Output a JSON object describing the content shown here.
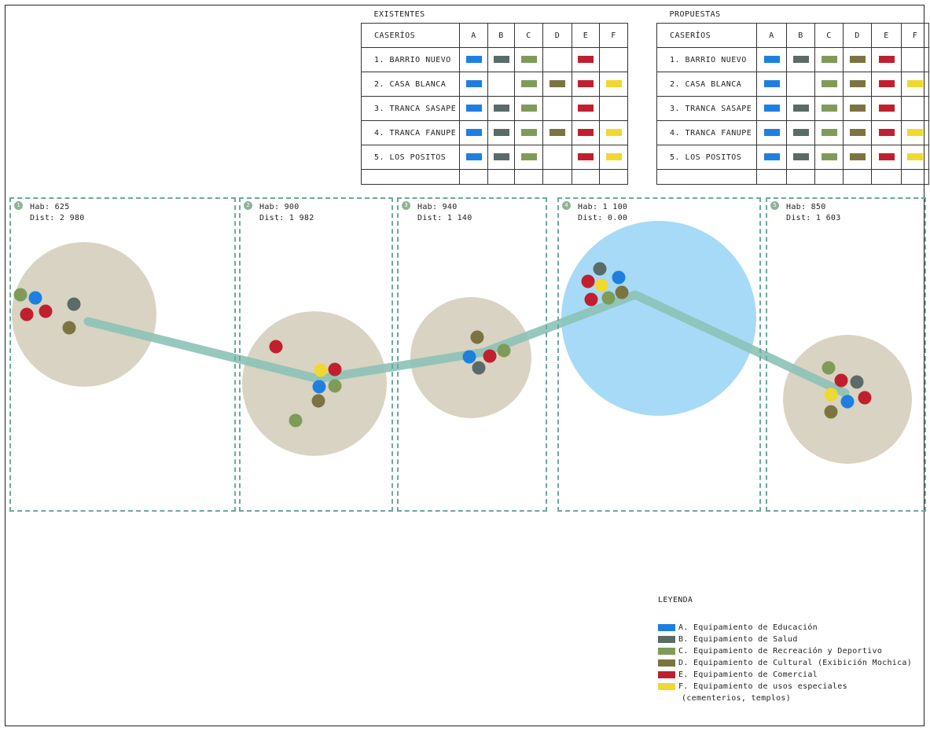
{
  "colors": {
    "A": "#1f7fe0",
    "B": "#5a6b68",
    "C": "#7e9c58",
    "D": "#7c7440",
    "E": "#c0202e",
    "F": "#f0d832",
    "zone_circle": "#d8d3c3",
    "hub_circle": "#a7daf6",
    "link": "#8cc2b6",
    "zone_border": "#6aa99e"
  },
  "tables": [
    {
      "title": "EXISTENTES",
      "headers": [
        "CASERÍOS",
        "A",
        "B",
        "C",
        "D",
        "E",
        "F"
      ],
      "rows": [
        {
          "name": "1. BARRIO NUEVO",
          "cells": [
            "A",
            "B",
            "C",
            "",
            "E",
            ""
          ]
        },
        {
          "name": "2. CASA BLANCA",
          "cells": [
            "A",
            "",
            "C",
            "D",
            "E",
            "F"
          ]
        },
        {
          "name": "3. TRANCA SASAPE",
          "cells": [
            "A",
            "B",
            "C",
            "",
            "E",
            ""
          ]
        },
        {
          "name": "4. TRANCA FANUPE",
          "cells": [
            "A",
            "B",
            "C",
            "D",
            "E",
            "F"
          ]
        },
        {
          "name": "5. LOS POSITOS",
          "cells": [
            "A",
            "B",
            "C",
            "",
            "E",
            "F"
          ]
        }
      ]
    },
    {
      "title": "PROPUESTAS",
      "headers": [
        "CASERÍOS",
        "A",
        "B",
        "C",
        "D",
        "E",
        "F"
      ],
      "rows": [
        {
          "name": "1. BARRIO NUEVO",
          "cells": [
            "A",
            "B",
            "C",
            "D",
            "E",
            ""
          ]
        },
        {
          "name": "2. CASA BLANCA",
          "cells": [
            "A",
            "",
            "C",
            "D",
            "E",
            "F"
          ]
        },
        {
          "name": "3. TRANCA SASAPE",
          "cells": [
            "A",
            "B",
            "C",
            "D",
            "E",
            ""
          ]
        },
        {
          "name": "4. TRANCA FANUPE",
          "cells": [
            "A",
            "B",
            "C",
            "D",
            "E",
            "F"
          ]
        },
        {
          "name": "5. LOS POSITOS",
          "cells": [
            "A",
            "B",
            "C",
            "D",
            "E",
            "F"
          ]
        }
      ]
    }
  ],
  "zones": [
    {
      "num": "1",
      "hab": "Hab: 625",
      "dist": "Dist: 2 980"
    },
    {
      "num": "2",
      "hab": "Hab: 900",
      "dist": "Dist: 1 982"
    },
    {
      "num": "3",
      "hab": "Hab: 940",
      "dist": "Dist: 1 140"
    },
    {
      "num": "4",
      "hab": "Hab: 1 100",
      "dist": "Dist: 0.00"
    },
    {
      "num": "5",
      "hab": "Hab: 850",
      "dist": "Dist: 1 603"
    }
  ],
  "legend": {
    "title": "LEYENDA",
    "items": [
      {
        "key": "A",
        "label": "A. Equipamiento de Educación"
      },
      {
        "key": "B",
        "label": "B. Equipamiento de Salud"
      },
      {
        "key": "C",
        "label": "C. Equipamiento de Recreación y Deportivo"
      },
      {
        "key": "D",
        "label": "D. Equipamiento de Cultural (Exibición Mochica)"
      },
      {
        "key": "E",
        "label": "E. Equipamiento de Comercial"
      },
      {
        "key": "F",
        "label": "F. Equipamiento de usos especiales"
      }
    ],
    "note": "(cementerios, templos)"
  }
}
